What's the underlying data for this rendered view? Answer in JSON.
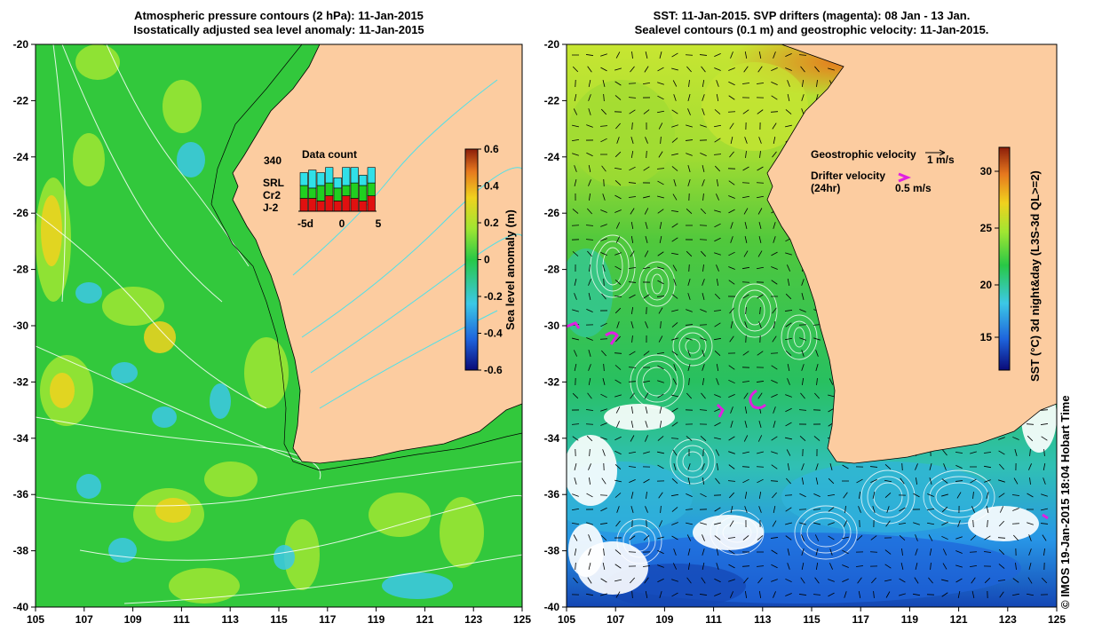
{
  "left_panel": {
    "title_line1": "Atmospheric pressure contours (2 hPa): 11-Jan-2015",
    "title_line2": "Isostatically adjusted sea level anomaly: 11-Jan-2015",
    "colorbar": {
      "label": "Sea level anomaly (m)",
      "ticks": [
        "0.6",
        "0.4",
        "0.2",
        "0",
        "-0.2",
        "-0.4",
        "-0.6"
      ],
      "colors": [
        "#0a0a78",
        "#1e64dc",
        "#3cc8e6",
        "#28c846",
        "#a0e632",
        "#f0d21e",
        "#e6781e",
        "#8c1e0a"
      ]
    },
    "data_count": {
      "title": "Data count",
      "max_label": "340",
      "legend": [
        {
          "name": "SRL",
          "color": "#30e0e8"
        },
        {
          "name": "Cr2",
          "color": "#20d020"
        },
        {
          "name": "J-2",
          "color": "#e01010"
        }
      ],
      "x_ticks": [
        "-5d",
        "0",
        "5"
      ],
      "bars": [
        {
          "srl": 0.25,
          "cr2": 0.25,
          "j2": 0.25
        },
        {
          "srl": 0.35,
          "cr2": 0.2,
          "j2": 0.25
        },
        {
          "srl": 0.25,
          "cr2": 0.3,
          "j2": 0.2
        },
        {
          "srl": 0.3,
          "cr2": 0.25,
          "j2": 0.3
        },
        {
          "srl": 0.2,
          "cr2": 0.25,
          "j2": 0.2
        },
        {
          "srl": 0.35,
          "cr2": 0.2,
          "j2": 0.3
        },
        {
          "srl": 0.3,
          "cr2": 0.3,
          "j2": 0.25
        },
        {
          "srl": 0.2,
          "cr2": 0.3,
          "j2": 0.2
        },
        {
          "srl": 0.3,
          "cr2": 0.25,
          "j2": 0.3
        }
      ]
    }
  },
  "right_panel": {
    "title_line1": "SST: 11-Jan-2015. SVP drifters (magenta): 08 Jan - 13 Jan.",
    "title_line2": "Sealevel contours (0.1 m) and geostrophic velocity: 11-Jan-2015.",
    "colorbar": {
      "label": "SST (°C) 3d night&day (L3S-3d QL>=2)",
      "ticks": [
        "30",
        "25",
        "20",
        "15"
      ],
      "colors": [
        "#0a0a78",
        "#1e64dc",
        "#3cc8e6",
        "#28c846",
        "#a0e632",
        "#f0d21e",
        "#e6781e",
        "#8c1e0a"
      ]
    },
    "geo_velocity_label": "Geostrophic velocity",
    "geo_velocity_scale": "1 m/s",
    "drifter_velocity_label": "Drifter velocity",
    "drifter_velocity_sub": "(24hr)",
    "drifter_velocity_scale": "0.5 m/s"
  },
  "axes": {
    "lon_ticks": [
      "105",
      "107",
      "109",
      "111",
      "113",
      "115",
      "117",
      "119",
      "121",
      "123",
      "125"
    ],
    "lat_ticks": [
      "-20",
      "-22",
      "-24",
      "-26",
      "-28",
      "-30",
      "-32",
      "-34",
      "-36",
      "-38",
      "-40"
    ],
    "lon_range": [
      105,
      125
    ],
    "lat_range": [
      -20,
      -40
    ]
  },
  "credit": "© IMOS 19-Jan-2015 18:04 Hobart Time"
}
